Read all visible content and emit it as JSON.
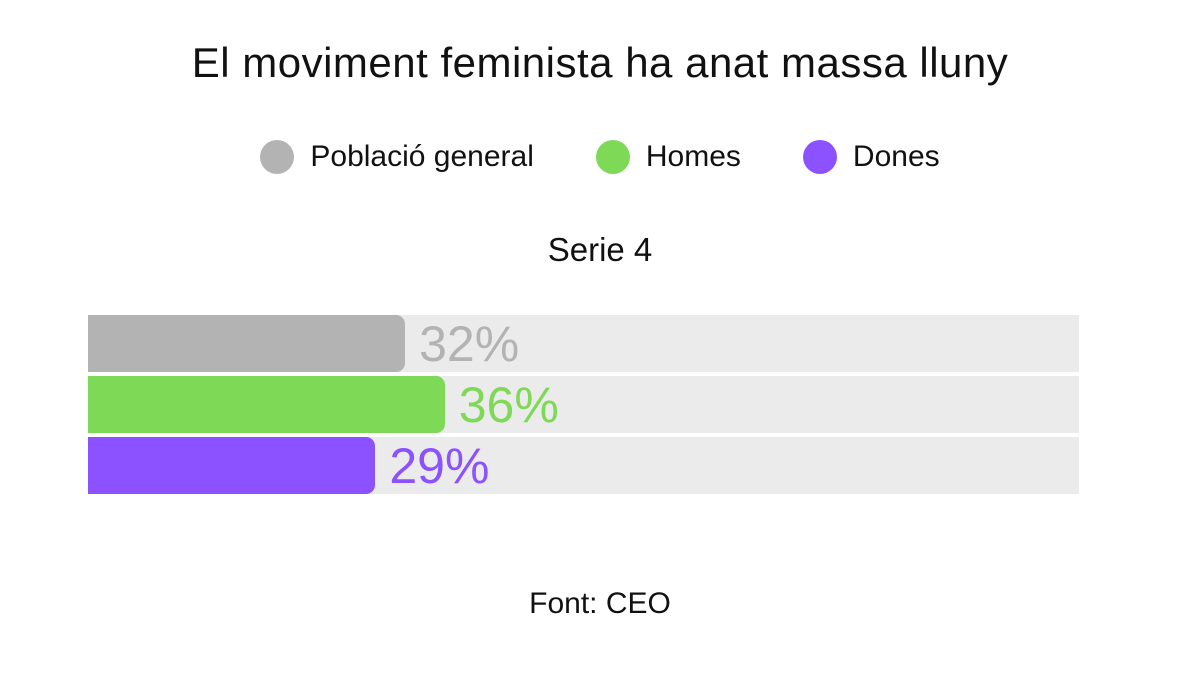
{
  "page": {
    "background": "#ffffff"
  },
  "chart": {
    "title": "El moviment feminista ha anat massa lluny",
    "subtitle": "Serie 4",
    "source": "Font: CEO"
  },
  "chart_data": {
    "type": "bar",
    "orientation": "horizontal",
    "title": "El moviment feminista ha anat massa lluny",
    "subtitle": "Serie 4",
    "source_note": "Font: CEO",
    "categories": [
      "Població general",
      "Homes",
      "Dones"
    ],
    "values": [
      32,
      36,
      29
    ],
    "value_labels": [
      "32%",
      "36%",
      "29%"
    ],
    "unit": "%",
    "xlim": [
      0,
      100
    ],
    "grid": false,
    "legend_position": "top",
    "track_color": "#ebebeb",
    "legend": [
      {
        "label": "Població general",
        "color": "#b3b3b3"
      },
      {
        "label": "Homes",
        "color": "#7ed957"
      },
      {
        "label": "Dones",
        "color": "#8c52ff"
      }
    ],
    "series": [
      {
        "name": "Població general",
        "value": 32,
        "label": "32%",
        "color": "#b3b3b3"
      },
      {
        "name": "Homes",
        "value": 36,
        "label": "36%",
        "color": "#7ed957"
      },
      {
        "name": "Dones",
        "value": 29,
        "label": "29%",
        "color": "#8c52ff"
      }
    ]
  }
}
